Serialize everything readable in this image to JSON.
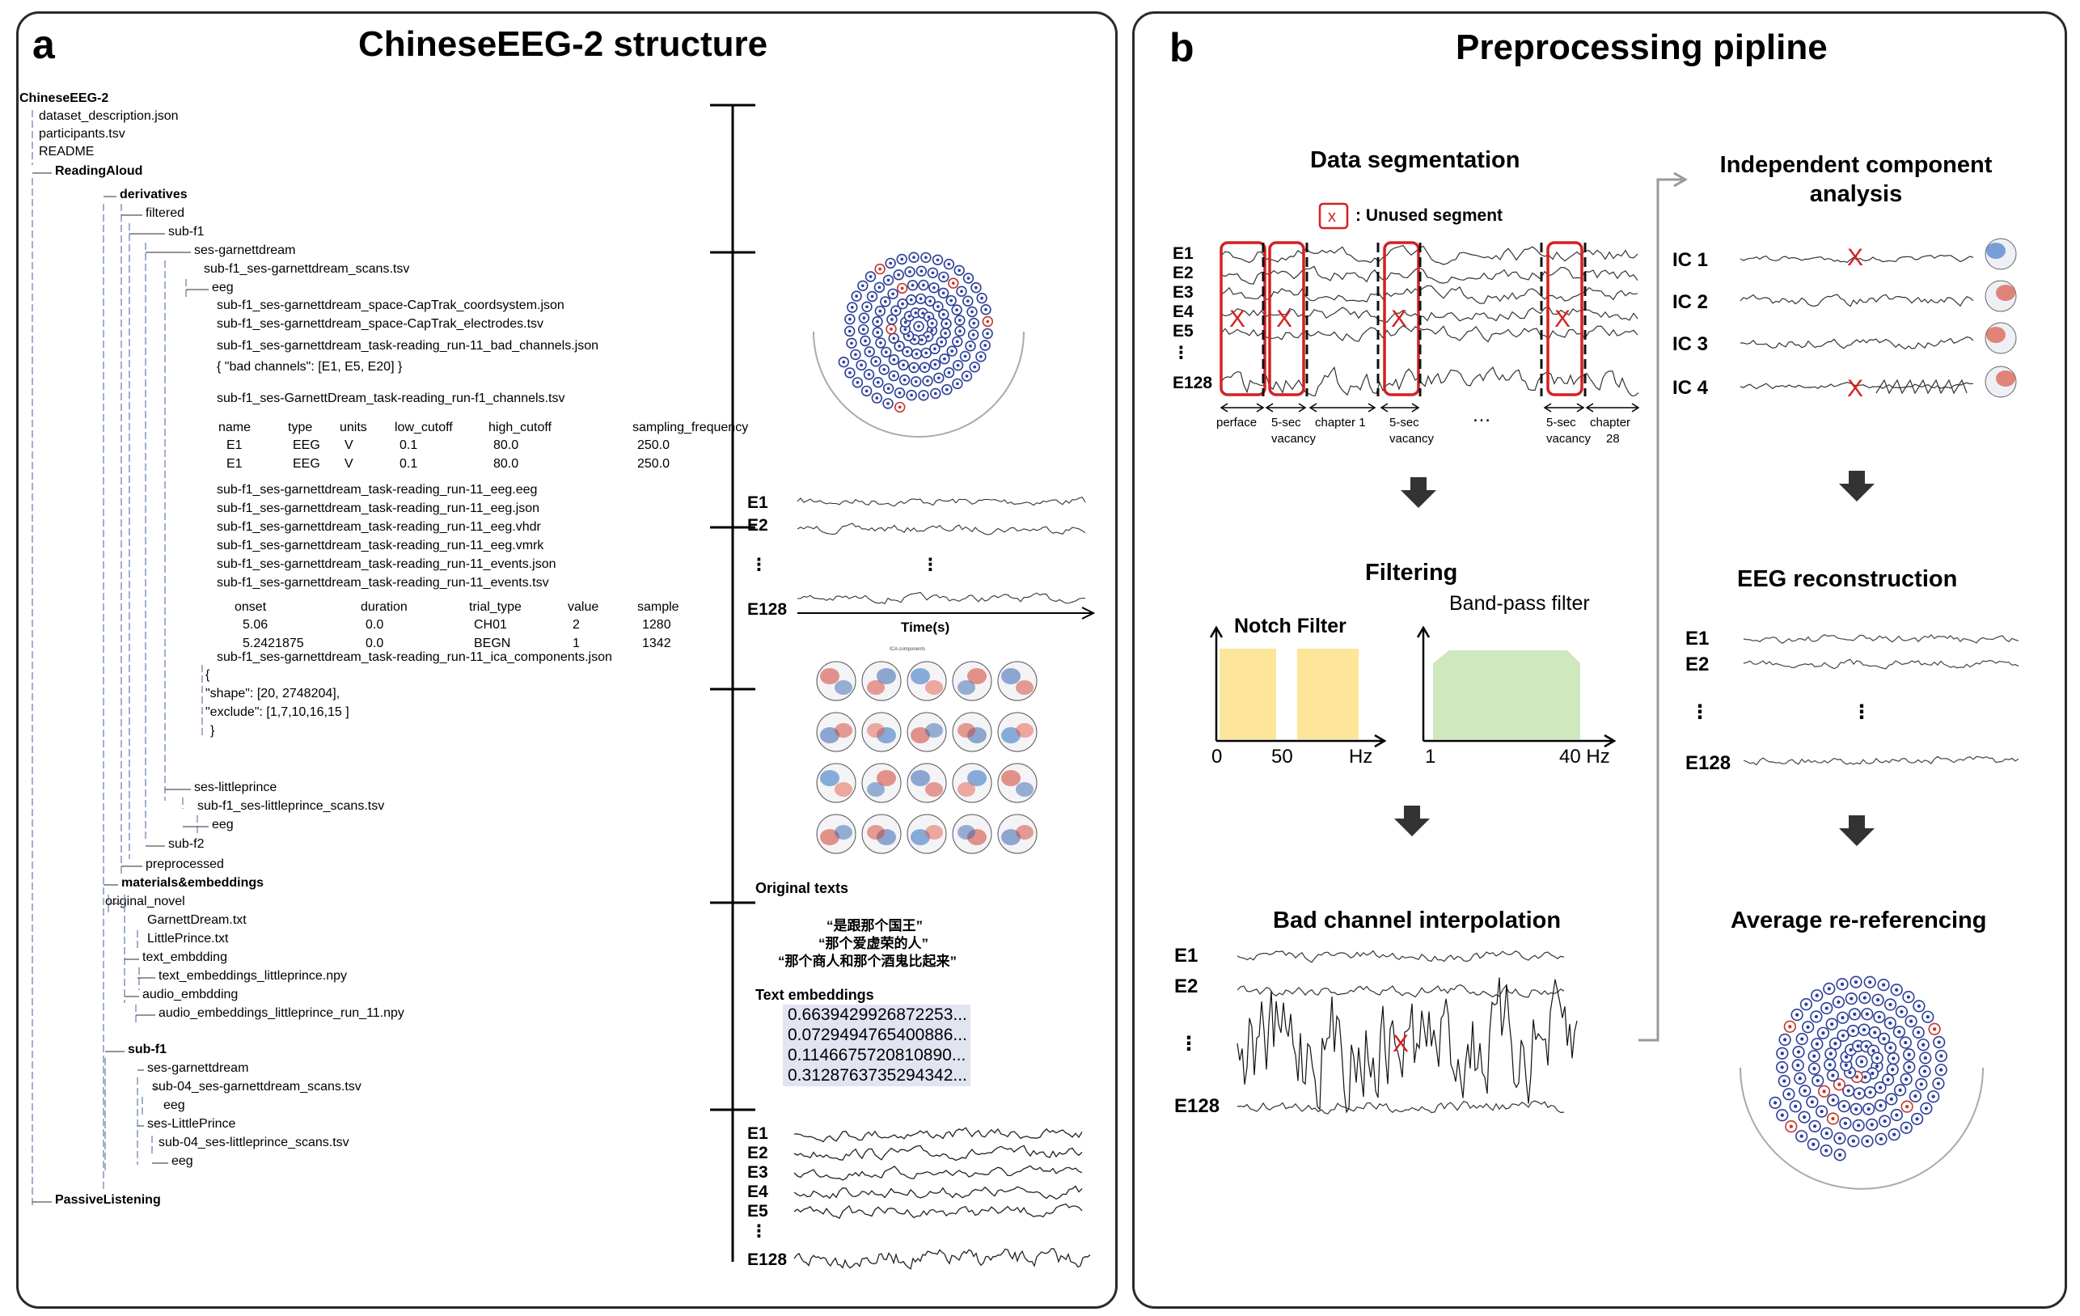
{
  "panel_a": {
    "label": "a",
    "title": "ChineseEEG-2 structure",
    "tree": [
      {
        "text": "ChineseEEG-2",
        "bold": true
      },
      {
        "text": "dataset_description.json"
      },
      {
        "text": "participants.tsv"
      },
      {
        "text": "README"
      },
      {
        "text": "ReadingAloud",
        "bold": true
      },
      {
        "text": "derivatives",
        "bold": true
      },
      {
        "text": "filtered"
      },
      {
        "text": "sub-f1"
      },
      {
        "text": "ses-garnettdream"
      },
      {
        "text": "sub-f1_ses-garnettdream_scans.tsv"
      },
      {
        "text": "eeg"
      },
      {
        "text": "sub-f1_ses-garnettdream_space-CapTrak_coordsystem.json"
      },
      {
        "text": "sub-f1_ses-garnettdream_space-CapTrak_electrodes.tsv"
      },
      {
        "text": "sub-f1_ses-garnettdream_task-reading_run-11_bad_channels.json"
      },
      {
        "text": "{ \"bad channels\": [E1, E5, E20] }"
      },
      {
        "text": "sub-f1_ses-GarnettDream_task-reading_run-f1_channels.tsv"
      },
      {
        "text": "sub-f1_ses-garnettdream_task-reading_run-11_eeg.eeg"
      },
      {
        "text": "sub-f1_ses-garnettdream_task-reading_run-11_eeg.json"
      },
      {
        "text": "sub-f1_ses-garnettdream_task-reading_run-11_eeg.vhdr"
      },
      {
        "text": "sub-f1_ses-garnettdream_task-reading_run-11_eeg.vmrk"
      },
      {
        "text": "sub-f1_ses-garnettdream_task-reading_run-11_events.json"
      },
      {
        "text": "sub-f1_ses-garnettdream_task-reading_run-11_events.tsv"
      },
      {
        "text": "sub-f1_ses-garnettdream_task-reading_run-11_ica_components.json"
      },
      {
        "text": "{"
      },
      {
        "text": "\"shape\": [20, 2748204],"
      },
      {
        "text": "\"exclude\": [1,7,10,16,15 ]"
      },
      {
        "text": "}"
      },
      {
        "text": "ses-littleprince"
      },
      {
        "text": "sub-f1_ses-littleprince_scans.tsv"
      },
      {
        "text": "eeg"
      },
      {
        "text": "sub-f2"
      },
      {
        "text": "preprocessed"
      },
      {
        "text": "materials&embeddings",
        "bold": true
      },
      {
        "text": "original_novel"
      },
      {
        "text": "GarnettDream.txt"
      },
      {
        "text": "LittlePrince.txt"
      },
      {
        "text": "text_embdding"
      },
      {
        "text": "text_embeddings_littleprince.npy"
      },
      {
        "text": "audio_embdding"
      },
      {
        "text": "audio_embeddings_littleprince_run_11.npy"
      },
      {
        "text": "sub-f1",
        "bold": true
      },
      {
        "text": "ses-garnettdream"
      },
      {
        "text": "sub-04_ses-garnettdream_scans.tsv"
      },
      {
        "text": "eeg"
      },
      {
        "text": "ses-LittlePrince"
      },
      {
        "text": "sub-04_ses-littleprince_scans.tsv"
      },
      {
        "text": "eeg"
      },
      {
        "text": "PassiveListening",
        "bold": true
      }
    ],
    "channels_table": {
      "headers": [
        "name",
        "type",
        "units",
        "low_cutoff",
        "high_cutoff",
        "sampling_frequency"
      ],
      "rows": [
        [
          "E1",
          "EEG",
          "V",
          "0.1",
          "80.0",
          "250.0"
        ],
        [
          "E1",
          "EEG",
          "V",
          "0.1",
          "80.0",
          "250.0"
        ]
      ]
    },
    "events_table": {
      "headers": [
        "onset",
        "duration",
        "trial_type",
        "value",
        "sample"
      ],
      "rows": [
        [
          "5.06",
          "0.0",
          "CH01",
          "2",
          "1280"
        ],
        [
          "5.2421875",
          "0.0",
          "BEGN",
          "1",
          "1342"
        ]
      ]
    },
    "eeg_raw_labels": [
      "E1",
      "E2",
      "⋮",
      "E128"
    ],
    "time_axis_label": "Time(s)",
    "ica_grid_title": "ICA components",
    "original_texts_label": "Original texts",
    "original_texts": [
      "“是跟那个国王”",
      "“那个爱虚荣的人”",
      "“那个商人和那个酒鬼比起来”"
    ],
    "text_embeddings_label": "Text embeddings",
    "text_embeddings": [
      "0.6639429926872253...",
      "0.0729494765400886...",
      "0.1146675720810890...",
      "0.3128763735294342..."
    ],
    "eeg_bottom_labels": [
      "E1",
      "E2",
      "E3",
      "E4",
      "E5",
      "⋮",
      "E128"
    ]
  },
  "panel_b": {
    "label": "b",
    "title": "Preprocessing pipline",
    "segmentation": {
      "title": "Data segmentation",
      "legend_mark": "x",
      "legend_text": ": Unused segment",
      "channel_labels": [
        "E1",
        "E2",
        "E3",
        "E4",
        "E5",
        "⋮",
        "E128"
      ],
      "segment_labels": [
        {
          "line1": "perface",
          "line2": ""
        },
        {
          "line1": "5-sec",
          "line2": "vacancy"
        },
        {
          "line1": "chapter 1",
          "line2": ""
        },
        {
          "line1": "5-sec",
          "line2": "vacancy"
        },
        {
          "line1": "…",
          "line2": ""
        },
        {
          "line1": "5-sec",
          "line2": "vacancy"
        },
        {
          "line1": "chapter",
          "line2": "28"
        }
      ],
      "unused_mark": "X"
    },
    "filtering": {
      "title": "Filtering",
      "notch_title": "Notch Filter",
      "notch_ticks": [
        "0",
        "50",
        "Hz"
      ],
      "bandpass_title": "Band-pass filter",
      "bandpass_ticks": [
        "1",
        "40 Hz"
      ],
      "notch_color": "#fde59a",
      "bandpass_color": "#cfe8bd"
    },
    "bad_channel": {
      "title": "Bad channel interpolation",
      "labels": [
        "E1",
        "E2",
        "⋮",
        "E128"
      ],
      "mark": "X"
    },
    "ica": {
      "title": "Independent component analysis",
      "components": [
        "IC 1",
        "IC 2",
        "IC 3",
        "IC 4"
      ],
      "mark": "X"
    },
    "reconstruction": {
      "title": "EEG reconstruction",
      "labels": [
        "E1",
        "E2",
        "⋮",
        "E128"
      ]
    },
    "rereferencing": {
      "title": "Average re-referencing"
    }
  },
  "colors": {
    "border": "#2a2a2a",
    "mark_red": "#d42020",
    "electrode_blue": "#2d3f9a",
    "electrode_red": "#c0392b",
    "embedding_bg": "#e1e4f1"
  }
}
